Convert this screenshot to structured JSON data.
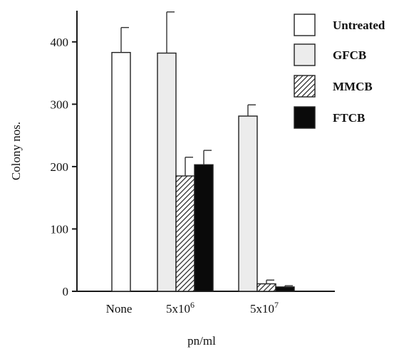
{
  "chart_data": {
    "type": "bar",
    "categories": [
      "None",
      "5x10",
      "5x10"
    ],
    "category_superscripts": [
      "",
      "6",
      "7"
    ],
    "xlabel": "pn/ml",
    "ylabel": "Colony nos.",
    "ylim": [
      0,
      450
    ],
    "yticks": [
      0,
      100,
      200,
      300,
      400
    ],
    "legend_position": "top-right",
    "grid": false,
    "series": [
      {
        "name": "Untreated",
        "pattern": "open",
        "color": "#ffffff",
        "values": [
          383,
          null,
          null
        ],
        "errors": [
          40,
          null,
          null
        ]
      },
      {
        "name": "GFCB",
        "pattern": "light-fill",
        "color": "#ececec",
        "values": [
          null,
          382,
          281
        ],
        "errors": [
          null,
          66,
          18
        ]
      },
      {
        "name": "MMCB",
        "pattern": "hatched",
        "color": "#666666",
        "values": [
          null,
          185,
          12
        ],
        "errors": [
          null,
          30,
          6
        ]
      },
      {
        "name": "FTCB",
        "pattern": "solid",
        "color": "#0a0a0a",
        "values": [
          null,
          203,
          7
        ],
        "errors": [
          null,
          23,
          2
        ]
      }
    ]
  }
}
